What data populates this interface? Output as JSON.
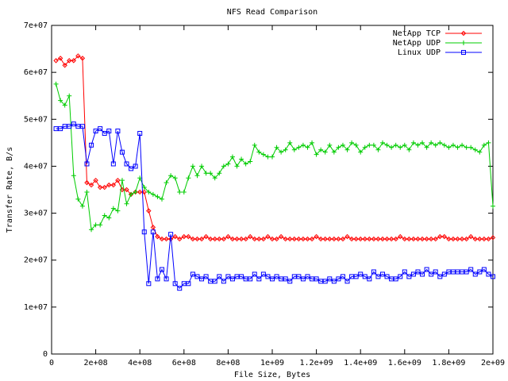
{
  "chart_data": {
    "type": "line",
    "title": "NFS Read Comparison",
    "x_label": "File Size, Bytes",
    "y_label": "Transfer Rate, B/s",
    "x": [
      20000000.0,
      40000000.0,
      60000000.0,
      80000000.0,
      100000000.0,
      120000000.0,
      140000000.0,
      160000000.0,
      180000000.0,
      200000000.0,
      220000000.0,
      240000000.0,
      260000000.0,
      280000000.0,
      300000000.0,
      320000000.0,
      340000000.0,
      360000000.0,
      380000000.0,
      400000000.0,
      420000000.0,
      440000000.0,
      460000000.0,
      480000000.0,
      500000000.0,
      520000000.0,
      540000000.0,
      560000000.0,
      580000000.0,
      600000000.0,
      620000000.0,
      640000000.0,
      660000000.0,
      680000000.0,
      700000000.0,
      720000000.0,
      740000000.0,
      760000000.0,
      780000000.0,
      800000000.0,
      820000000.0,
      840000000.0,
      860000000.0,
      880000000.0,
      900000000.0,
      920000000.0,
      940000000.0,
      960000000.0,
      980000000.0,
      1000000000.0,
      1020000000.0,
      1040000000.0,
      1060000000.0,
      1080000000.0,
      1100000000.0,
      1120000000.0,
      1140000000.0,
      1160000000.0,
      1180000000.0,
      1200000000.0,
      1220000000.0,
      1240000000.0,
      1260000000.0,
      1280000000.0,
      1300000000.0,
      1320000000.0,
      1340000000.0,
      1360000000.0,
      1380000000.0,
      1400000000.0,
      1420000000.0,
      1440000000.0,
      1460000000.0,
      1480000000.0,
      1500000000.0,
      1520000000.0,
      1540000000.0,
      1560000000.0,
      1580000000.0,
      1600000000.0,
      1620000000.0,
      1640000000.0,
      1660000000.0,
      1680000000.0,
      1700000000.0,
      1720000000.0,
      1740000000.0,
      1760000000.0,
      1780000000.0,
      1800000000.0,
      1820000000.0,
      1840000000.0,
      1860000000.0,
      1880000000.0,
      1900000000.0,
      1920000000.0,
      1940000000.0,
      1960000000.0,
      1980000000.0,
      2000000000.0
    ],
    "series": [
      {
        "name": "NetApp TCP",
        "color": "#ff0000",
        "marker": "diamond",
        "values": [
          62500000.0,
          63000000.0,
          61500000.0,
          62500000.0,
          62500000.0,
          63500000.0,
          63000000.0,
          36500000.0,
          36000000.0,
          37000000.0,
          35500000.0,
          35500000.0,
          36000000.0,
          36000000.0,
          37000000.0,
          35000000.0,
          35000000.0,
          34000000.0,
          34500000.0,
          34500000.0,
          34500000.0,
          30500000.0,
          27000000.0,
          25000000.0,
          24500000.0,
          24500000.0,
          24500000.0,
          25000000.0,
          24500000.0,
          25000000.0,
          25000000.0,
          24500000.0,
          24500000.0,
          24500000.0,
          25000000.0,
          24500000.0,
          24500000.0,
          24500000.0,
          24500000.0,
          25000000.0,
          24500000.0,
          24500000.0,
          24500000.0,
          24500000.0,
          25000000.0,
          24500000.0,
          24500000.0,
          24500000.0,
          25000000.0,
          24500000.0,
          24500000.0,
          25000000.0,
          24500000.0,
          24500000.0,
          24500000.0,
          24500000.0,
          24500000.0,
          24500000.0,
          24500000.0,
          25000000.0,
          24500000.0,
          24500000.0,
          24500000.0,
          24500000.0,
          24500000.0,
          24500000.0,
          25000000.0,
          24500000.0,
          24500000.0,
          24500000.0,
          24500000.0,
          24500000.0,
          24500000.0,
          24500000.0,
          24500000.0,
          24500000.0,
          24500000.0,
          24500000.0,
          25000000.0,
          24500000.0,
          24500000.0,
          24500000.0,
          24500000.0,
          24500000.0,
          24500000.0,
          24500000.0,
          24500000.0,
          25000000.0,
          25000000.0,
          24500000.0,
          24500000.0,
          24500000.0,
          24500000.0,
          24500000.0,
          25000000.0,
          24500000.0,
          24500000.0,
          24500000.0,
          24500000.0,
          24800000.0
        ]
      },
      {
        "name": "NetApp UDP",
        "color": "#00cc00",
        "marker": "plus",
        "values": [
          57500000.0,
          54000000.0,
          53000000.0,
          55000000.0,
          38000000.0,
          33000000.0,
          31500000.0,
          34500000.0,
          26500000.0,
          27500000.0,
          27500000.0,
          29500000.0,
          29000000.0,
          31000000.0,
          30500000.0,
          37000000.0,
          32000000.0,
          34000000.0,
          34500000.0,
          37500000.0,
          35500000.0,
          34500000.0,
          34000000.0,
          33500000.0,
          33000000.0,
          36500000.0,
          38000000.0,
          37500000.0,
          34500000.0,
          34500000.0,
          37500000.0,
          40000000.0,
          38000000.0,
          40000000.0,
          38500000.0,
          38500000.0,
          37500000.0,
          38500000.0,
          40000000.0,
          40500000.0,
          42000000.0,
          40000000.0,
          41500000.0,
          40500000.0,
          41000000.0,
          44500000.0,
          43000000.0,
          42500000.0,
          42000000.0,
          42000000.0,
          44000000.0,
          43000000.0,
          43500000.0,
          45000000.0,
          43500000.0,
          44000000.0,
          44500000.0,
          44000000.0,
          45000000.0,
          42500000.0,
          43500000.0,
          43000000.0,
          44500000.0,
          43000000.0,
          44000000.0,
          44500000.0,
          43500000.0,
          45000000.0,
          44500000.0,
          43000000.0,
          44000000.0,
          44500000.0,
          44500000.0,
          43500000.0,
          45000000.0,
          44500000.0,
          44000000.0,
          44500000.0,
          44000000.0,
          44500000.0,
          43500000.0,
          45000000.0,
          44500000.0,
          45000000.0,
          44000000.0,
          45000000.0,
          44500000.0,
          45000000.0,
          44500000.0,
          44000000.0,
          44500000.0,
          44000000.0,
          44500000.0,
          44000000.0,
          44000000.0,
          43500000.0,
          43000000.0,
          44500000.0,
          45000000.0,
          31500000.0
        ]
      },
      {
        "name": "Linux UDP",
        "color": "#0000ff",
        "marker": "square",
        "values": [
          48000000.0,
          48000000.0,
          48500000.0,
          48500000.0,
          49000000.0,
          48500000.0,
          48500000.0,
          40500000.0,
          44500000.0,
          47500000.0,
          48000000.0,
          47000000.0,
          47500000.0,
          40500000.0,
          47500000.0,
          43000000.0,
          40500000.0,
          39500000.0,
          40000000.0,
          47000000.0,
          26000000.0,
          15000000.0,
          26000000.0,
          16000000.0,
          18000000.0,
          16000000.0,
          25500000.0,
          15000000.0,
          14000000.0,
          15000000.0,
          15000000.0,
          17000000.0,
          16500000.0,
          16000000.0,
          16500000.0,
          15500000.0,
          15500000.0,
          16500000.0,
          15500000.0,
          16500000.0,
          16000000.0,
          16500000.0,
          16500000.0,
          16000000.0,
          16000000.0,
          17000000.0,
          16000000.0,
          17000000.0,
          16500000.0,
          16000000.0,
          16500000.0,
          16000000.0,
          16000000.0,
          15500000.0,
          16500000.0,
          16500000.0,
          16000000.0,
          16500000.0,
          16000000.0,
          16000000.0,
          15500000.0,
          15500000.0,
          16000000.0,
          15500000.0,
          16000000.0,
          16500000.0,
          15500000.0,
          16500000.0,
          16500000.0,
          17000000.0,
          16500000.0,
          16000000.0,
          17500000.0,
          16500000.0,
          17000000.0,
          16500000.0,
          16000000.0,
          16000000.0,
          16500000.0,
          17500000.0,
          16500000.0,
          17000000.0,
          17500000.0,
          17000000.0,
          18000000.0,
          17000000.0,
          17500000.0,
          16500000.0,
          17000000.0,
          17500000.0,
          17500000.0,
          17500000.0,
          17500000.0,
          17500000.0,
          18000000.0,
          17000000.0,
          17500000.0,
          18000000.0,
          17000000.0,
          16500000.0
        ]
      }
    ],
    "xlim": [
      0,
      2000000000.0
    ],
    "xticks": [
      0,
      {
        "value": 200000000.0,
        "label": "2e+08"
      },
      {
        "value": 400000000.0,
        "label": "4e+08"
      },
      {
        "value": 600000000.0,
        "label": "6e+08"
      },
      {
        "value": 800000000.0,
        "label": "8e+08"
      },
      {
        "value": 1000000000.0,
        "label": "1e+09"
      },
      {
        "value": 1200000000.0,
        "label": "1.2e+09"
      },
      {
        "value": 1400000000.0,
        "label": "1.4e+09"
      },
      {
        "value": 1600000000.0,
        "label": "1.6e+09"
      },
      {
        "value": 1800000000.0,
        "label": "1.8e+09"
      },
      {
        "value": 2000000000.0,
        "label": "2e+09"
      }
    ],
    "ylim": [
      0,
      70000000.0
    ],
    "yticks": [
      0,
      {
        "value": 10000000.0,
        "label": "1e+07"
      },
      {
        "value": 20000000.0,
        "label": "2e+07"
      },
      {
        "value": 30000000.0,
        "label": "3e+07"
      },
      {
        "value": 40000000.0,
        "label": "4e+07"
      },
      {
        "value": 50000000.0,
        "label": "5e+07"
      },
      {
        "value": 60000000.0,
        "label": "6e+07"
      },
      {
        "value": 70000000.0,
        "label": "7e+07"
      }
    ],
    "grid": false,
    "legend": "top-right"
  }
}
